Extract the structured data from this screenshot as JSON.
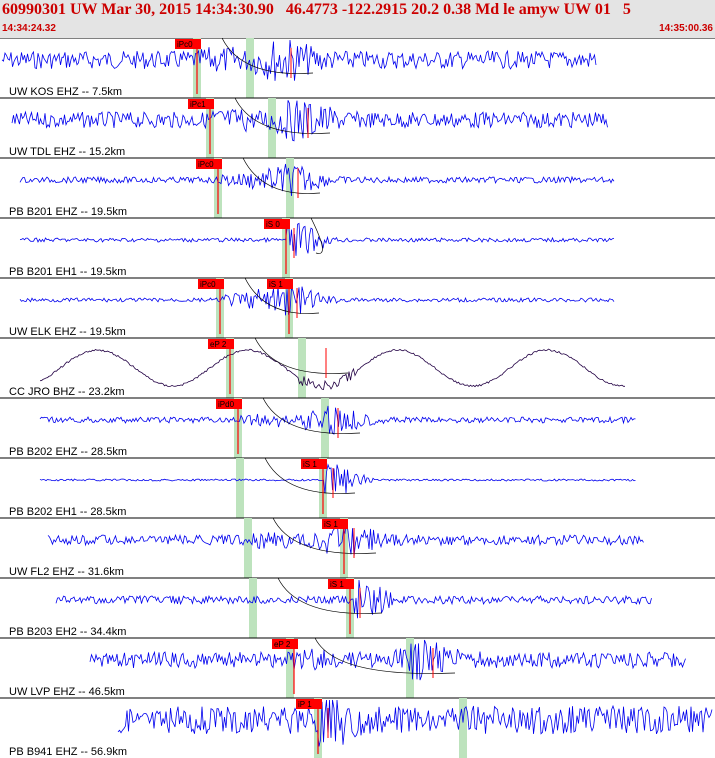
{
  "header": {
    "title": "60990301 UW Mar 30, 2015 14:34:30.90   46.4773 -122.2915 20.2 0.38 Md le amyw UW 01   5",
    "time_start": "14:34:24.32",
    "time_end": "14:35:00.36"
  },
  "colors": {
    "trace": "#0000ee",
    "trace_dark": "#220044",
    "pick": "#ff0000",
    "band": "#bde3bd",
    "separator": "#000000",
    "header_bg": "#e4e4e4",
    "header_text": "#cc0000"
  },
  "traces": [
    {
      "label": "UW KOS EHZ -- 7.5km",
      "picks": [
        "iPc0"
      ]
    },
    {
      "label": "UW TDL EHZ -- 15.2km",
      "picks": [
        "iPc1"
      ]
    },
    {
      "label": "PB B201 EHZ -- 19.5km",
      "picks": [
        "iPc0"
      ]
    },
    {
      "label": "PB B201 EH1 -- 19.5km",
      "picks": [
        "iS 0"
      ]
    },
    {
      "label": "UW ELK EHZ -- 19.5km",
      "picks": [
        "iPc0",
        "iS 1"
      ]
    },
    {
      "label": "CC JRO BHZ -- 23.2km",
      "picks": [
        "eP 2"
      ]
    },
    {
      "label": "PB B202 EHZ -- 28.5km",
      "picks": [
        "iPd0"
      ]
    },
    {
      "label": "PB B202 EH1 -- 28.5km",
      "picks": [
        "iS 1"
      ]
    },
    {
      "label": "UW FL2 EHZ -- 31.6km",
      "picks": [
        "iS 1"
      ]
    },
    {
      "label": "PB B203 EH2 -- 34.4km",
      "picks": [
        "iS 1"
      ]
    },
    {
      "label": "UW LVP EHZ -- 46.5km",
      "picks": [
        "eP 2"
      ]
    },
    {
      "label": "PB B941 EHZ -- 56.9km",
      "picks": [
        "iP 1"
      ]
    }
  ]
}
